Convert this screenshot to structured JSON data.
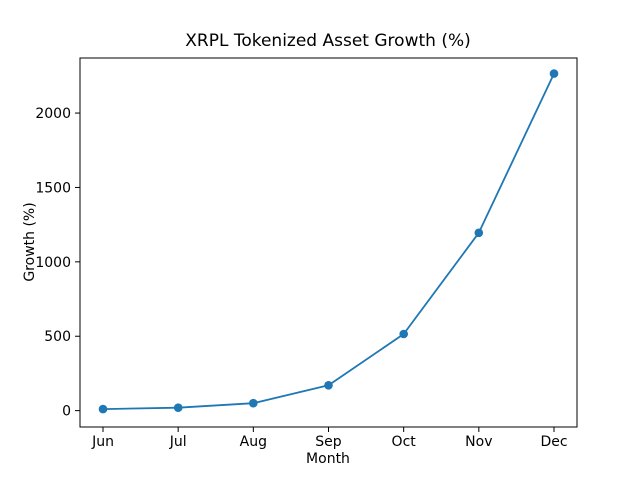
{
  "figure": {
    "background": "#ffffff",
    "text_color": "#000000",
    "spine_color": "#000000"
  },
  "chart_data": {
    "type": "line",
    "title": "XRPL Tokenized Asset Growth (%)",
    "xlabel": "Month",
    "ylabel": "Growth (%)",
    "categories": [
      "Jun",
      "Jul",
      "Aug",
      "Sep",
      "Oct",
      "Nov",
      "Dec"
    ],
    "values": [
      10,
      20,
      50,
      170,
      515,
      1195,
      2265
    ],
    "yticks": [
      0,
      500,
      1000,
      1500,
      2000
    ],
    "ylim": [
      -110,
      2370
    ],
    "line_color": "#1f77b4",
    "marker": "circle",
    "marker_color": "#1f77b4",
    "grid": false,
    "legend": "none"
  }
}
